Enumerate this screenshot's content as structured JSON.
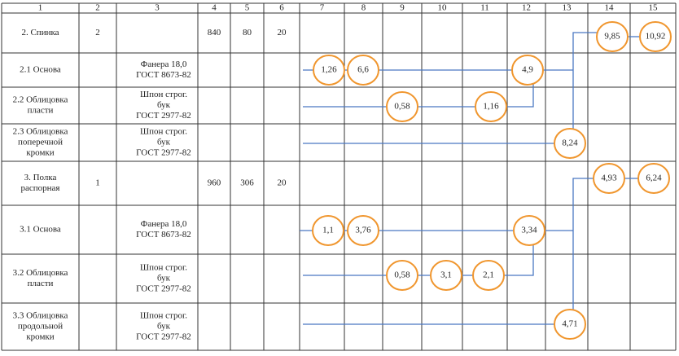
{
  "header": {
    "columns": [
      "1",
      "2",
      "3",
      "4",
      "5",
      "6",
      "7",
      "8",
      "9",
      "10",
      "11",
      "12",
      "13",
      "14",
      "15"
    ]
  },
  "rows": [
    {
      "name": [
        "2. Спинка"
      ],
      "qty": "2",
      "material": [],
      "dims": [
        "840",
        "80",
        "20"
      ]
    },
    {
      "name": [
        "2.1 Основа"
      ],
      "qty": "",
      "material": [
        "Фанера 18,0",
        "ГОСТ 8673-82"
      ],
      "dims": []
    },
    {
      "name": [
        "2.2 Облицовка",
        "пласти"
      ],
      "qty": "",
      "material": [
        "Шпон строг.",
        "бук",
        "ГОСТ 2977-82"
      ],
      "dims": []
    },
    {
      "name": [
        "2.3 Облицовка",
        "поперечной",
        "кромки"
      ],
      "qty": "",
      "material": [
        "Шпон строг.",
        "бук",
        "ГОСТ 2977-82"
      ],
      "dims": []
    },
    {
      "name": [
        "3. Полка",
        "распорная"
      ],
      "qty": "1",
      "material": [],
      "dims": [
        "960",
        "306",
        "20"
      ]
    },
    {
      "name": [
        "3.1 Основа"
      ],
      "qty": "",
      "material": [
        "Фанера 18,0",
        "ГОСТ 8673-82"
      ],
      "dims": []
    },
    {
      "name": [
        "3.2 Облицовка",
        "пласти"
      ],
      "qty": "",
      "material": [
        "Шпон строг.",
        "бук",
        "ГОСТ 2977-82"
      ],
      "dims": []
    },
    {
      "name": [
        "3.3 Облицовка",
        "продольной",
        "кромки"
      ],
      "qty": "",
      "material": [
        "Шпон строг.",
        "бук",
        "ГОСТ 2977-82"
      ],
      "dims": []
    }
  ],
  "nodes": [
    {
      "label": "9,85"
    },
    {
      "label": "10,92"
    },
    {
      "label": "1,26"
    },
    {
      "label": "6,6"
    },
    {
      "label": "4,9"
    },
    {
      "label": "0,58"
    },
    {
      "label": "1,16"
    },
    {
      "label": "8,24"
    },
    {
      "label": "4,93"
    },
    {
      "label": "6,24"
    },
    {
      "label": "1,1"
    },
    {
      "label": "3,76"
    },
    {
      "label": "3,34"
    },
    {
      "label": "0,58"
    },
    {
      "label": "3,1"
    },
    {
      "label": "2,1"
    },
    {
      "label": "4,71"
    }
  ]
}
